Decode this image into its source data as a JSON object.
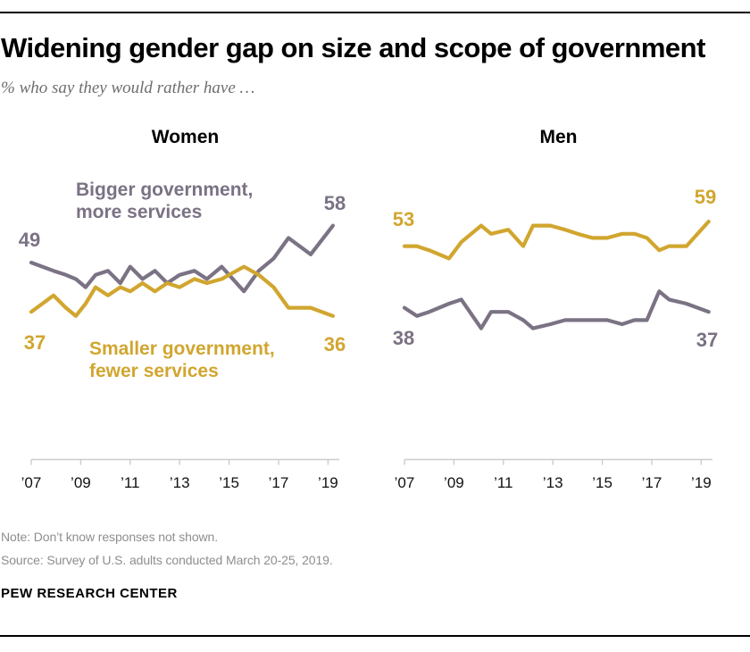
{
  "page": {
    "title": "Widening gender gap on size and scope of government",
    "subtitle": "% who say they would rather have …"
  },
  "colors": {
    "bigger_government": "#7b7284",
    "smaller_government": "#d1a62f",
    "axis": "#cccccc",
    "tick_text": "#111111",
    "note_gray": "#8e8e8e"
  },
  "chart_data": [
    {
      "type": "line",
      "panel": "Women",
      "x_range": [
        2007,
        2019.3
      ],
      "x_ticks": [
        "’07",
        "’09",
        "’11",
        "’13",
        "’15",
        "’17",
        "’19"
      ],
      "x": [
        2007.0,
        2007.9,
        2008.4,
        2008.8,
        2009.2,
        2009.6,
        2010.1,
        2010.6,
        2011.0,
        2011.5,
        2012.0,
        2012.5,
        2013.0,
        2013.6,
        2014.1,
        2014.7,
        2015.6,
        2016.2,
        2016.8,
        2017.4,
        2018.3,
        2019.2
      ],
      "series": [
        {
          "name": "Bigger government, more services",
          "color_key": "bigger_government",
          "annotation": "Bigger government,\nmore services",
          "labels": {
            "start": "49",
            "end": "58"
          },
          "values": [
            49,
            47,
            46,
            45,
            43,
            46,
            47,
            44,
            48,
            45,
            47,
            44,
            46,
            47,
            45,
            48,
            42,
            47,
            50,
            55,
            51,
            58
          ]
        },
        {
          "name": "Smaller government, fewer services",
          "color_key": "smaller_government",
          "annotation": "Smaller government,\nfewer services",
          "labels": {
            "start": "37",
            "end": "36"
          },
          "values": [
            37,
            41,
            38,
            36,
            39,
            43,
            41,
            43,
            42,
            44,
            42,
            44,
            43,
            45,
            44,
            45,
            48,
            46,
            43,
            38,
            38,
            36
          ]
        }
      ]
    },
    {
      "type": "line",
      "panel": "Men",
      "x_range": [
        2007,
        2019.3
      ],
      "x_ticks": [
        "’07",
        "’09",
        "’11",
        "’13",
        "’15",
        "’17",
        "’19"
      ],
      "x": [
        2007.0,
        2007.5,
        2008.0,
        2008.8,
        2009.3,
        2010.1,
        2010.5,
        2011.2,
        2011.8,
        2012.2,
        2012.9,
        2013.5,
        2014.0,
        2014.6,
        2015.2,
        2015.8,
        2016.3,
        2016.8,
        2017.3,
        2017.7,
        2018.4,
        2019.3
      ],
      "series": [
        {
          "name": "Bigger government, more services",
          "color_key": "bigger_government",
          "labels": {
            "start": "38",
            "end": "37"
          },
          "values": [
            38,
            36,
            37,
            39,
            40,
            33,
            37,
            37,
            35,
            33,
            34,
            35,
            35,
            35,
            35,
            34,
            35,
            35,
            42,
            40,
            39,
            37
          ]
        },
        {
          "name": "Smaller government, fewer services",
          "color_key": "smaller_government",
          "labels": {
            "start": "53",
            "end": "59"
          },
          "values": [
            53,
            53,
            52,
            50,
            54,
            58,
            56,
            57,
            53,
            58,
            58,
            57,
            56,
            55,
            55,
            56,
            56,
            55,
            52,
            53,
            53,
            59
          ]
        }
      ]
    }
  ],
  "footer": {
    "note": "Note: Don’t know responses not shown.",
    "source": "Source: Survey of U.S. adults conducted March 20-25, 2019.",
    "brand": "PEW RESEARCH CENTER"
  }
}
